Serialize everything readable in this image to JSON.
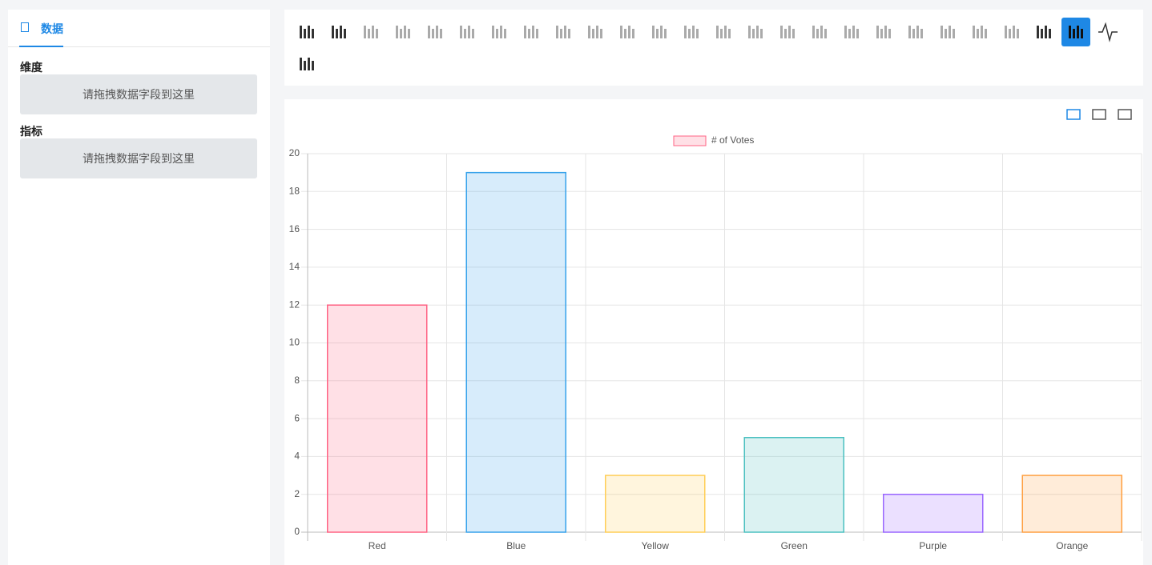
{
  "sidebar": {
    "tab": "数据",
    "sections": [
      {
        "label": "维度",
        "placeholder": "请拖拽数据字段到这里"
      },
      {
        "label": "指标",
        "placeholder": "请拖拽数据字段到这里"
      }
    ]
  },
  "chart_data": {
    "type": "bar",
    "categories": [
      "Red",
      "Blue",
      "Yellow",
      "Green",
      "Purple",
      "Orange"
    ],
    "series": [
      {
        "name": "# of Votes",
        "values": [
          12,
          19,
          3,
          5,
          2,
          3
        ],
        "colors": [
          "rgba(255,99,132,0.2)",
          "rgba(54,162,235,0.2)",
          "rgba(255,206,86,0.2)",
          "rgba(75,192,192,0.2)",
          "rgba(153,102,255,0.2)",
          "rgba(255,159,64,0.2)"
        ],
        "border_colors": [
          "#ff6384",
          "#36a2eb",
          "#ffce56",
          "#4bc0c0",
          "#9966ff",
          "#ff9f40"
        ]
      }
    ],
    "ylim": [
      0,
      20
    ],
    "yticks": [
      0,
      2,
      4,
      6,
      8,
      10,
      12,
      14,
      16,
      18,
      20
    ],
    "grid": true
  }
}
